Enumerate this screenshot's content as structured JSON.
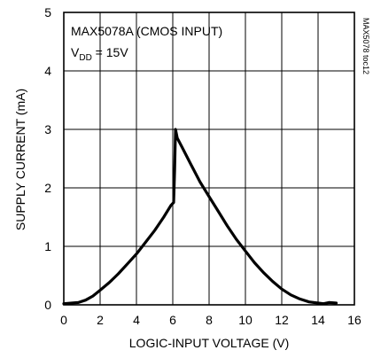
{
  "chart_data": {
    "type": "line",
    "annotation_line1": "MAX5078A (CMOS INPUT)",
    "annotation_line2_main": "V",
    "annotation_line2_sub": "DD",
    "annotation_line2_rest": " = 15V",
    "side_tag": "MAX5078 toc12",
    "xlabel": "LOGIC-INPUT VOLTAGE (V)",
    "ylabel": "SUPPLY CURRENT (mA)",
    "xlim": [
      0,
      16
    ],
    "ylim": [
      0,
      5
    ],
    "xticks": [
      "0",
      "2",
      "4",
      "6",
      "8",
      "10",
      "12",
      "14",
      "16"
    ],
    "yticks": [
      "0",
      "1",
      "2",
      "3",
      "4",
      "5"
    ],
    "grid": true,
    "line_color": "#000000",
    "series": [
      {
        "x": [
          0,
          0.8,
          1.2,
          1.6,
          2.0,
          2.5,
          3.0,
          3.5,
          4.0,
          4.5,
          5.0,
          5.5,
          5.9,
          6.05,
          6.1,
          6.15,
          6.25,
          6.5,
          7.0,
          7.5,
          8.0,
          8.5,
          9.0,
          9.5,
          10.0,
          10.5,
          11.0,
          11.5,
          12.0,
          12.5,
          13.0,
          13.5,
          14.0,
          14.3,
          14.6,
          15.0
        ],
        "y": [
          0.02,
          0.04,
          0.08,
          0.15,
          0.25,
          0.38,
          0.53,
          0.7,
          0.87,
          1.07,
          1.27,
          1.5,
          1.7,
          1.75,
          2.3,
          3.0,
          2.85,
          2.7,
          2.4,
          2.1,
          1.85,
          1.6,
          1.35,
          1.12,
          0.92,
          0.72,
          0.55,
          0.4,
          0.27,
          0.17,
          0.1,
          0.05,
          0.03,
          0.02,
          0.04,
          0.03
        ]
      }
    ]
  }
}
